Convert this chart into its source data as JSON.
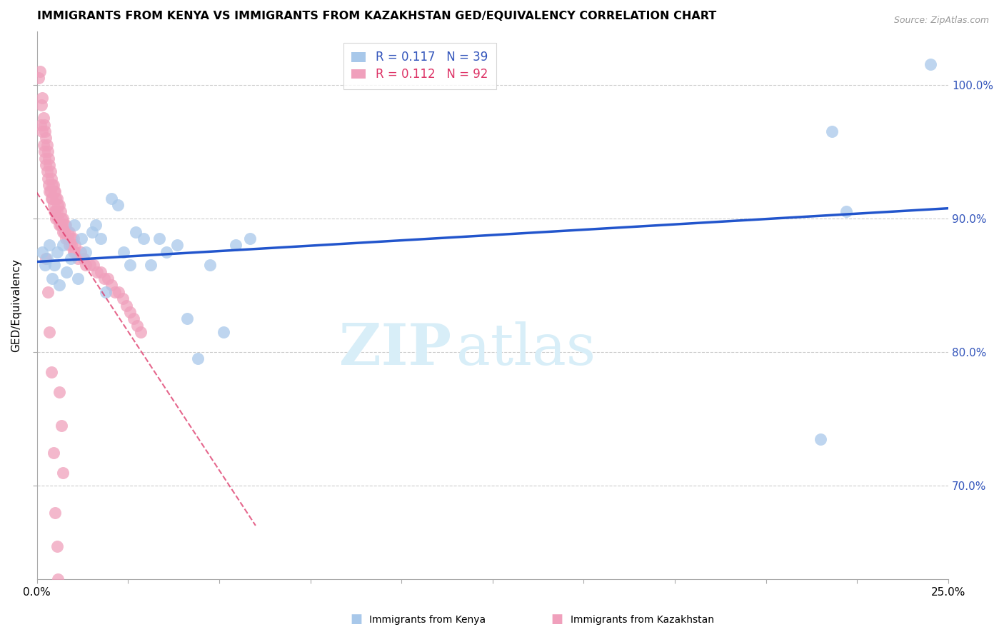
{
  "title": "IMMIGRANTS FROM KENYA VS IMMIGRANTS FROM KAZAKHSTAN GED/EQUIVALENCY CORRELATION CHART",
  "source": "Source: ZipAtlas.com",
  "ylabel": "GED/Equivalency",
  "yticks": [
    70.0,
    80.0,
    90.0,
    100.0
  ],
  "ytick_labels": [
    "70.0%",
    "80.0%",
    "90.0%",
    "100.0%"
  ],
  "xlim": [
    0.0,
    25.0
  ],
  "ylim": [
    63.0,
    104.0
  ],
  "kenya_R": "0.117",
  "kenya_N": "39",
  "kazakhstan_R": "0.112",
  "kazakhstan_N": "92",
  "kenya_color": "#A8C8EA",
  "kazakhstan_color": "#F0A0BC",
  "kenya_line_color": "#2255CC",
  "kazakhstan_line_color": "#DD3366",
  "kenya_x": [
    0.15,
    0.22,
    0.28,
    0.35,
    0.42,
    0.48,
    0.55,
    0.62,
    0.72,
    0.82,
    0.92,
    1.02,
    1.12,
    1.22,
    1.35,
    1.52,
    1.62,
    1.75,
    1.88,
    2.05,
    2.22,
    2.38,
    2.55,
    2.72,
    2.92,
    3.12,
    3.35,
    3.55,
    3.85,
    4.12,
    4.42,
    4.75,
    5.12,
    5.45,
    5.85,
    21.5,
    21.8,
    22.2,
    24.5
  ],
  "kenya_y": [
    87.5,
    86.5,
    87.0,
    88.0,
    85.5,
    86.5,
    87.5,
    85.0,
    88.0,
    86.0,
    87.0,
    89.5,
    85.5,
    88.5,
    87.5,
    89.0,
    89.5,
    88.5,
    84.5,
    91.5,
    91.0,
    87.5,
    86.5,
    89.0,
    88.5,
    86.5,
    88.5,
    87.5,
    88.0,
    82.5,
    79.5,
    86.5,
    81.5,
    88.0,
    88.5,
    73.5,
    96.5,
    90.5,
    101.5
  ],
  "kazakhstan_x": [
    0.05,
    0.08,
    0.1,
    0.12,
    0.15,
    0.15,
    0.18,
    0.18,
    0.2,
    0.2,
    0.22,
    0.22,
    0.25,
    0.25,
    0.28,
    0.28,
    0.3,
    0.3,
    0.32,
    0.32,
    0.35,
    0.35,
    0.38,
    0.38,
    0.4,
    0.4,
    0.42,
    0.42,
    0.45,
    0.45,
    0.48,
    0.48,
    0.5,
    0.5,
    0.52,
    0.52,
    0.55,
    0.55,
    0.58,
    0.58,
    0.62,
    0.62,
    0.65,
    0.65,
    0.68,
    0.68,
    0.72,
    0.72,
    0.75,
    0.75,
    0.8,
    0.8,
    0.85,
    0.85,
    0.9,
    0.9,
    0.95,
    0.95,
    1.0,
    1.0,
    1.05,
    1.05,
    1.12,
    1.2,
    1.28,
    1.35,
    1.45,
    1.55,
    1.65,
    1.75,
    1.85,
    1.95,
    2.05,
    2.15,
    2.25,
    2.35,
    2.45,
    2.55,
    2.65,
    2.75,
    2.85,
    0.62,
    0.68,
    0.72,
    0.5,
    0.55,
    0.58,
    0.45,
    0.4,
    0.35,
    0.3,
    0.25
  ],
  "kazakhstan_y": [
    100.5,
    101.0,
    97.0,
    98.5,
    96.5,
    99.0,
    95.5,
    97.5,
    95.0,
    97.0,
    94.5,
    96.5,
    94.0,
    96.0,
    93.5,
    95.5,
    93.0,
    95.0,
    92.5,
    94.5,
    92.0,
    94.0,
    92.0,
    93.5,
    91.5,
    93.0,
    91.5,
    92.5,
    91.0,
    92.5,
    90.5,
    92.0,
    90.5,
    92.0,
    90.0,
    91.5,
    90.5,
    91.5,
    90.0,
    91.0,
    89.5,
    91.0,
    89.5,
    90.5,
    89.5,
    90.0,
    89.0,
    90.0,
    89.0,
    89.5,
    88.5,
    89.5,
    88.5,
    89.0,
    88.0,
    89.0,
    88.0,
    88.5,
    87.5,
    88.5,
    87.5,
    88.0,
    87.0,
    87.5,
    87.0,
    86.5,
    86.5,
    86.5,
    86.0,
    86.0,
    85.5,
    85.5,
    85.0,
    84.5,
    84.5,
    84.0,
    83.5,
    83.0,
    82.5,
    82.0,
    81.5,
    77.0,
    74.5,
    71.0,
    68.0,
    65.5,
    63.0,
    72.5,
    78.5,
    81.5,
    84.5,
    87.0
  ],
  "background_color": "#FFFFFF",
  "grid_color": "#CCCCCC",
  "watermark_color": "#D8EEF8",
  "title_fontsize": 11.5,
  "tick_fontsize": 11,
  "legend_fontsize": 12,
  "ylabel_fontsize": 11,
  "source_fontsize": 9
}
